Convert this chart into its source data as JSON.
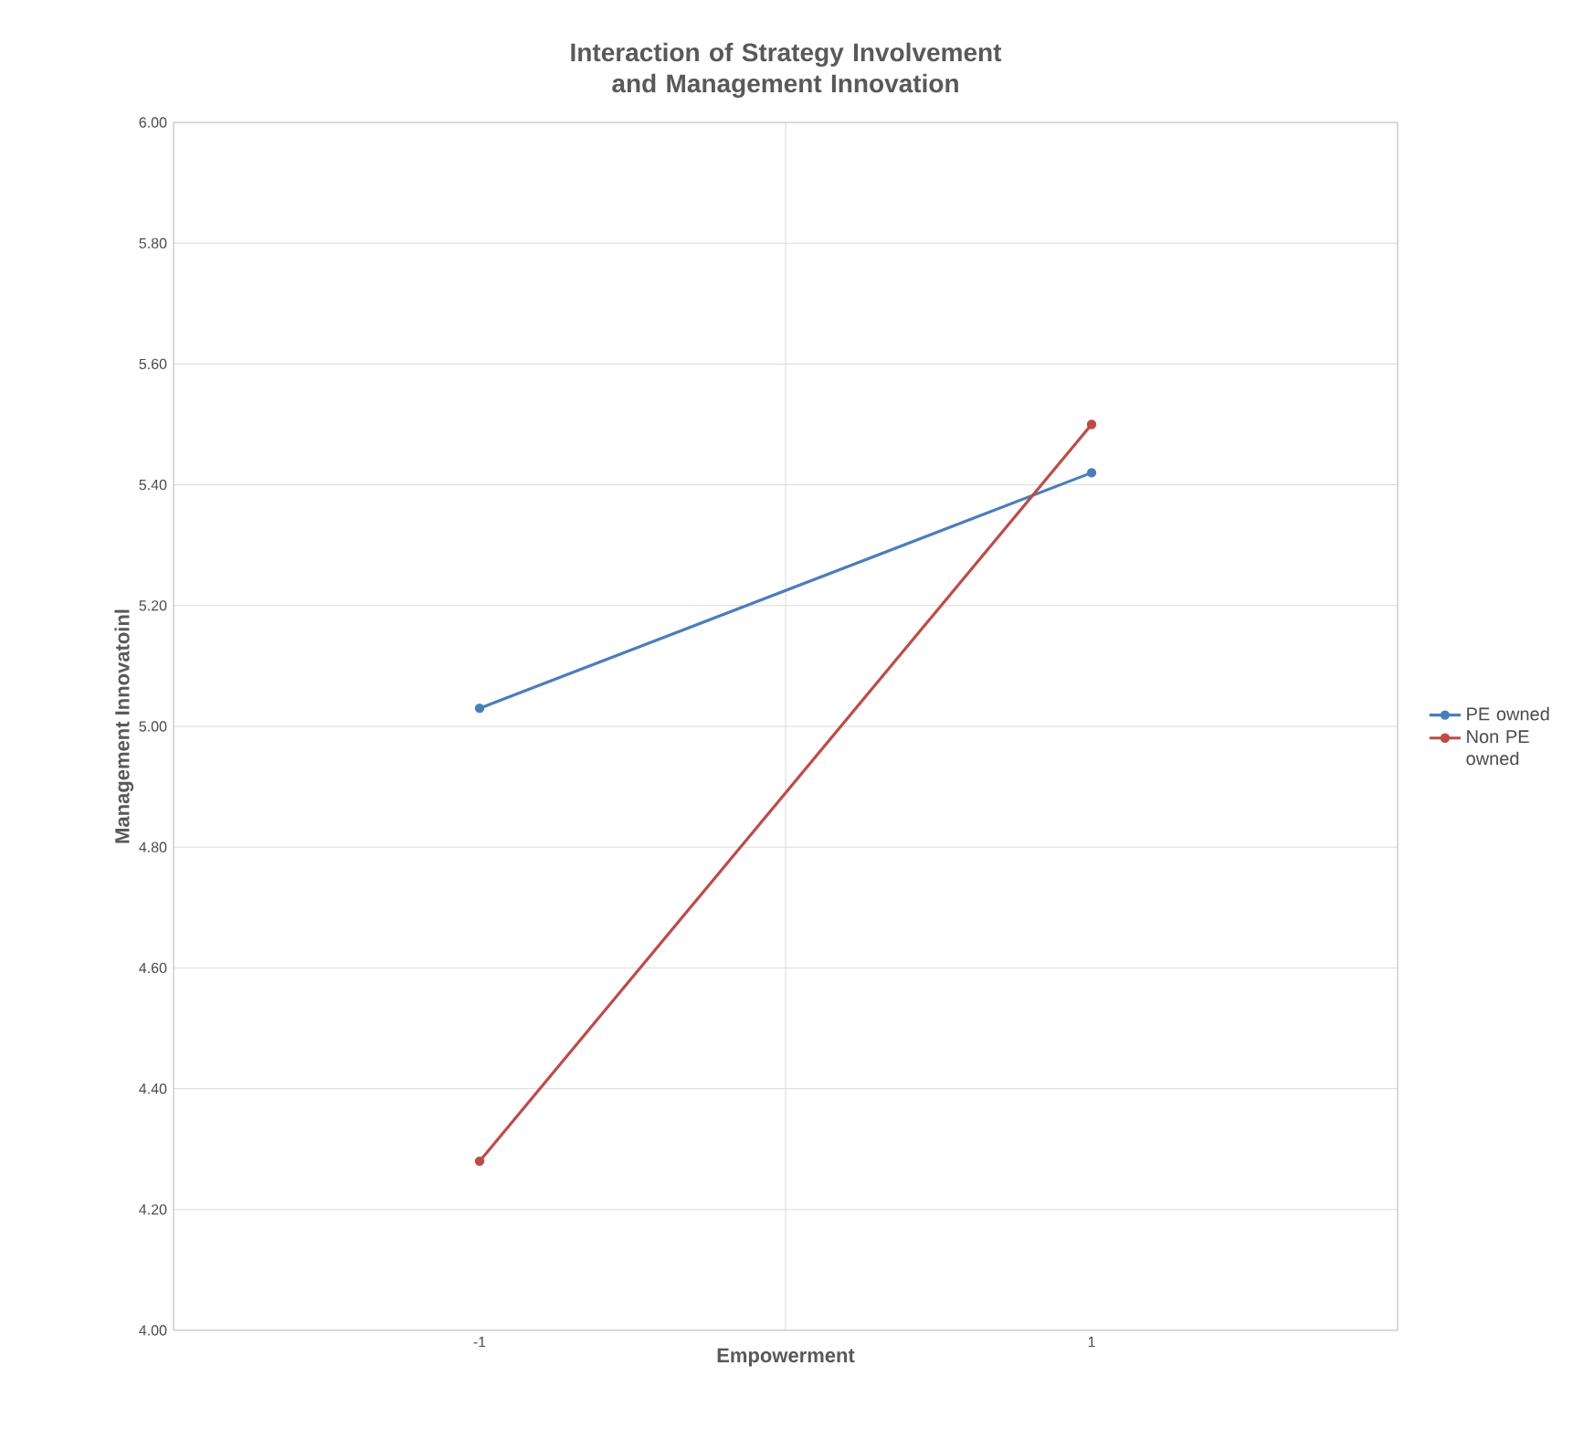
{
  "chart_data": {
    "type": "line",
    "title": "Interaction of Strategy Involvement and Management Innovation",
    "xlabel": "Empowerment",
    "ylabel": "Management Innovatoinl",
    "categories": [
      "-1",
      "1"
    ],
    "series": [
      {
        "name": "PE owned",
        "color": "#4a7ebb",
        "values": [
          5.03,
          5.42
        ]
      },
      {
        "name": "Non PE owned",
        "color": "#be4b48",
        "values": [
          4.28,
          5.5
        ]
      }
    ],
    "ylim": [
      4,
      6
    ],
    "yticks": [
      {
        "value": 4,
        "label": "4.00"
      },
      {
        "value": 4.2,
        "label": "4.20"
      },
      {
        "value": 4.4,
        "label": "4.40"
      },
      {
        "value": 4.6,
        "label": "4.60"
      },
      {
        "value": 4.8,
        "label": "4.80"
      },
      {
        "value": 5,
        "label": "5.00"
      },
      {
        "value": 5.2,
        "label": "5.20"
      },
      {
        "value": 5.4,
        "label": "5.40"
      },
      {
        "value": 5.6,
        "label": "5.60"
      },
      {
        "value": 5.8,
        "label": "5.80"
      },
      {
        "value": 6,
        "label": "6.00"
      }
    ],
    "grid": true,
    "legend": "right",
    "marker": "circle",
    "line_style": "solid"
  }
}
